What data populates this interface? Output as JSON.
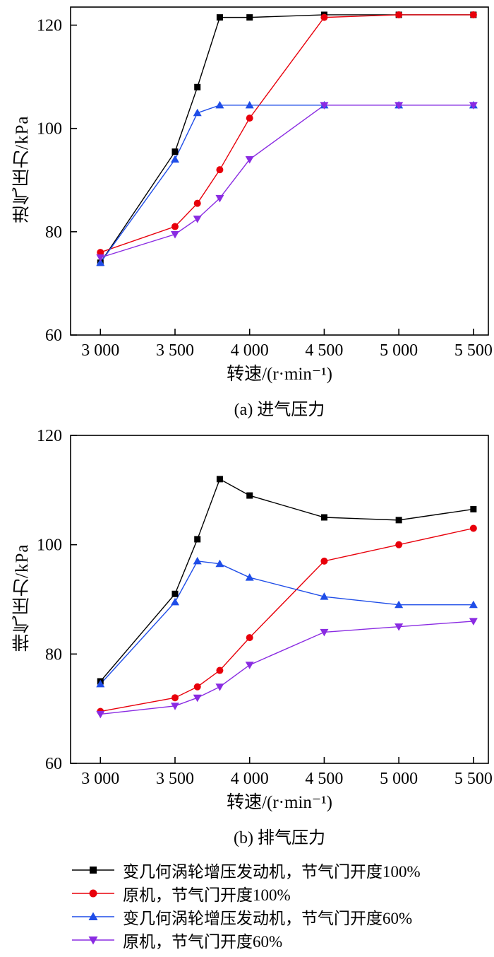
{
  "page": {
    "background": "#ffffff"
  },
  "chart_data": [
    {
      "type": "line",
      "caption": "(a) 进气压力",
      "xlabel": "转速/(r·min⁻¹)",
      "ylabel": "进气压力/kPa",
      "xlim": [
        2800,
        5600
      ],
      "ylim": [
        60,
        123.5
      ],
      "xticks": [
        3000,
        3500,
        4000,
        4500,
        5000,
        5500
      ],
      "xtick_labels": [
        "3 000",
        "3 500",
        "4 000",
        "4 500",
        "5 000",
        "5 500"
      ],
      "yticks": [
        60,
        80,
        100,
        120
      ],
      "ytick_labels": [
        "60",
        "80",
        "100",
        "120"
      ],
      "grid": false,
      "legend_position": "below-figure",
      "x": [
        3000,
        3500,
        3650,
        3800,
        4000,
        4500,
        5000,
        5500
      ],
      "series": [
        {
          "name": "变几何涡轮增压发动机，节气门开度100%",
          "marker": "square",
          "color": "#000000",
          "values": [
            74,
            95.5,
            108,
            121.5,
            121.5,
            122,
            122,
            122
          ]
        },
        {
          "name": "原机，节气门开度100%",
          "marker": "circle",
          "color": "#e8000b",
          "values": [
            76,
            81,
            85.5,
            92,
            102,
            121.5,
            122,
            122
          ]
        },
        {
          "name": "变几何涡轮增压发动机，节气门开度60%",
          "marker": "triangle-up",
          "color": "#1f4de8",
          "values": [
            74,
            94,
            103,
            104.5,
            104.5,
            104.5,
            104.5,
            104.5
          ]
        },
        {
          "name": "原机，节气门开度60%",
          "marker": "triangle-down",
          "color": "#8a2be2",
          "values": [
            75,
            79.5,
            82.5,
            86.5,
            94,
            104.5,
            104.5,
            104.5
          ]
        }
      ]
    },
    {
      "type": "line",
      "caption": "(b) 排气压力",
      "xlabel": "转速/(r·min⁻¹)",
      "ylabel": "排气压力/kPa",
      "xlim": [
        2800,
        5600
      ],
      "ylim": [
        60,
        120
      ],
      "xticks": [
        3000,
        3500,
        4000,
        4500,
        5000,
        5500
      ],
      "xtick_labels": [
        "3 000",
        "3 500",
        "4 000",
        "4 500",
        "5 000",
        "5 500"
      ],
      "yticks": [
        60,
        80,
        100,
        120
      ],
      "ytick_labels": [
        "60",
        "80",
        "100",
        "120"
      ],
      "grid": false,
      "legend_position": "below-figure",
      "x": [
        3000,
        3500,
        3650,
        3800,
        4000,
        4500,
        5000,
        5500
      ],
      "series": [
        {
          "name": "变几何涡轮增压发动机，节气门开度100%",
          "marker": "square",
          "color": "#000000",
          "values": [
            75,
            91,
            101,
            112,
            109,
            105,
            104.5,
            106.5
          ]
        },
        {
          "name": "原机，节气门开度100%",
          "marker": "circle",
          "color": "#e8000b",
          "values": [
            69.5,
            72,
            74,
            77,
            83,
            97,
            100,
            103
          ]
        },
        {
          "name": "变几何涡轮增压发动机，节气门开度60%",
          "marker": "triangle-up",
          "color": "#1f4de8",
          "values": [
            74.5,
            89.5,
            97,
            96.5,
            94,
            90.5,
            89,
            89
          ]
        },
        {
          "name": "原机，节气门开度60%",
          "marker": "triangle-down",
          "color": "#8a2be2",
          "values": [
            69,
            70.5,
            72,
            74,
            78,
            84,
            85,
            86
          ]
        }
      ]
    }
  ],
  "legend": {
    "items": [
      {
        "label": "变几何涡轮增压发动机，节气门开度100%",
        "marker": "square",
        "color": "#000000"
      },
      {
        "label": "原机，节气门开度100%",
        "marker": "circle",
        "color": "#e8000b"
      },
      {
        "label": "变几何涡轮增压发动机，节气门开度60%",
        "marker": "triangle-up",
        "color": "#1f4de8"
      },
      {
        "label": "原机，节气门开度60%",
        "marker": "triangle-down",
        "color": "#8a2be2"
      }
    ]
  }
}
